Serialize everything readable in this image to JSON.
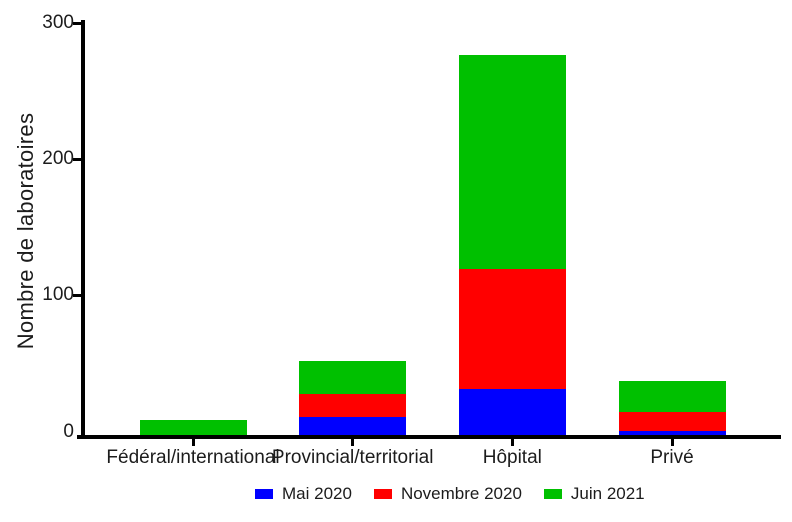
{
  "chart_data": {
    "type": "bar",
    "variant": "stacked",
    "title": "",
    "ylabel": "Nombre de laboratoires",
    "xlabel": "",
    "ylim": [
      0,
      300
    ],
    "yticks": [
      0,
      100,
      200,
      300
    ],
    "grid": false,
    "legend_position": "bottom",
    "categories": [
      "Fédéral/international",
      "Provincial/territorial",
      "Hôpital",
      "Privé"
    ],
    "series": [
      {
        "name": "Mai 2020",
        "color": "#0000ff",
        "values": [
          0,
          13,
          34,
          3
        ]
      },
      {
        "name": "Novembre 2020",
        "color": "#ff0000",
        "values": [
          0,
          17,
          88,
          14
        ]
      },
      {
        "name": "Juin 2021",
        "color": "#00c000",
        "values": [
          11,
          24,
          157,
          23
        ]
      }
    ],
    "totals": [
      11,
      54,
      279,
      40
    ]
  },
  "colors": {
    "axis": "#000000",
    "text": "#1c1c1c",
    "background": "#ffffff"
  }
}
